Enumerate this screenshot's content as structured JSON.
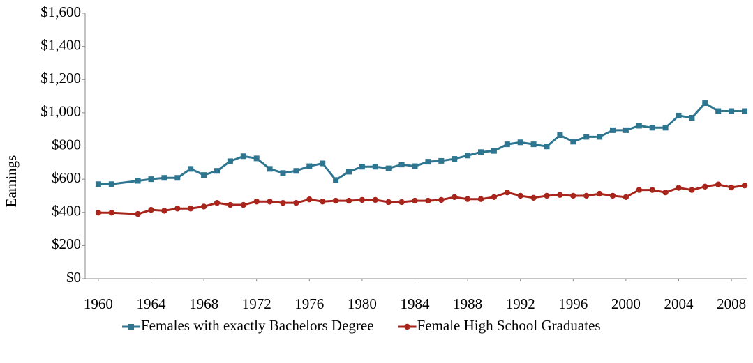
{
  "chart_data": {
    "type": "line",
    "y_label": "Earnings",
    "x": [
      1960,
      1961,
      1963,
      1964,
      1965,
      1966,
      1967,
      1968,
      1969,
      1970,
      1971,
      1972,
      1973,
      1974,
      1975,
      1976,
      1977,
      1978,
      1979,
      1980,
      1981,
      1982,
      1983,
      1984,
      1985,
      1986,
      1987,
      1988,
      1989,
      1990,
      1991,
      1992,
      1993,
      1994,
      1995,
      1996,
      1997,
      1998,
      1999,
      2000,
      2001,
      2002,
      2003,
      2004,
      2005,
      2006,
      2007,
      2008,
      2009
    ],
    "series": [
      {
        "name": "Females with exactly Bachelors Degree",
        "color": "#2e7590",
        "marker": "square",
        "values": [
          570,
          570,
          590,
          600,
          608,
          608,
          662,
          625,
          650,
          708,
          738,
          725,
          662,
          637,
          650,
          678,
          695,
          595,
          645,
          675,
          675,
          665,
          688,
          678,
          705,
          710,
          722,
          742,
          763,
          770,
          810,
          822,
          810,
          797,
          865,
          826,
          855,
          855,
          895,
          895,
          922,
          910,
          910,
          983,
          970,
          1058,
          1010,
          1010,
          1010
        ]
      },
      {
        "name": "Female High School Graduates",
        "color": "#a8251c",
        "marker": "circle",
        "values": [
          398,
          398,
          390,
          415,
          410,
          423,
          423,
          435,
          457,
          445,
          445,
          465,
          465,
          457,
          457,
          478,
          465,
          470,
          470,
          475,
          475,
          462,
          462,
          470,
          470,
          475,
          492,
          480,
          480,
          492,
          520,
          500,
          488,
          500,
          505,
          500,
          500,
          512,
          500,
          492,
          535,
          535,
          520,
          548,
          535,
          555,
          568,
          550,
          562
        ]
      }
    ],
    "xlim": [
      1959,
      2009
    ],
    "xticks": [
      1960,
      1964,
      1968,
      1972,
      1976,
      1980,
      1984,
      1988,
      1992,
      1996,
      2000,
      2004,
      2008
    ],
    "ylim": [
      0,
      1600
    ],
    "yticks": [
      {
        "value": 0,
        "label": "$0"
      },
      {
        "value": 200,
        "label": "$200"
      },
      {
        "value": 400,
        "label": "$400"
      },
      {
        "value": 600,
        "label": "$600"
      },
      {
        "value": 800,
        "label": "$800"
      },
      {
        "value": 1000,
        "label": "$1,000"
      },
      {
        "value": 1200,
        "label": "$1,200"
      },
      {
        "value": 1400,
        "label": "$1,400"
      },
      {
        "value": 1600,
        "label": "$1,600"
      }
    ],
    "grid": false,
    "legend": "bottom"
  }
}
